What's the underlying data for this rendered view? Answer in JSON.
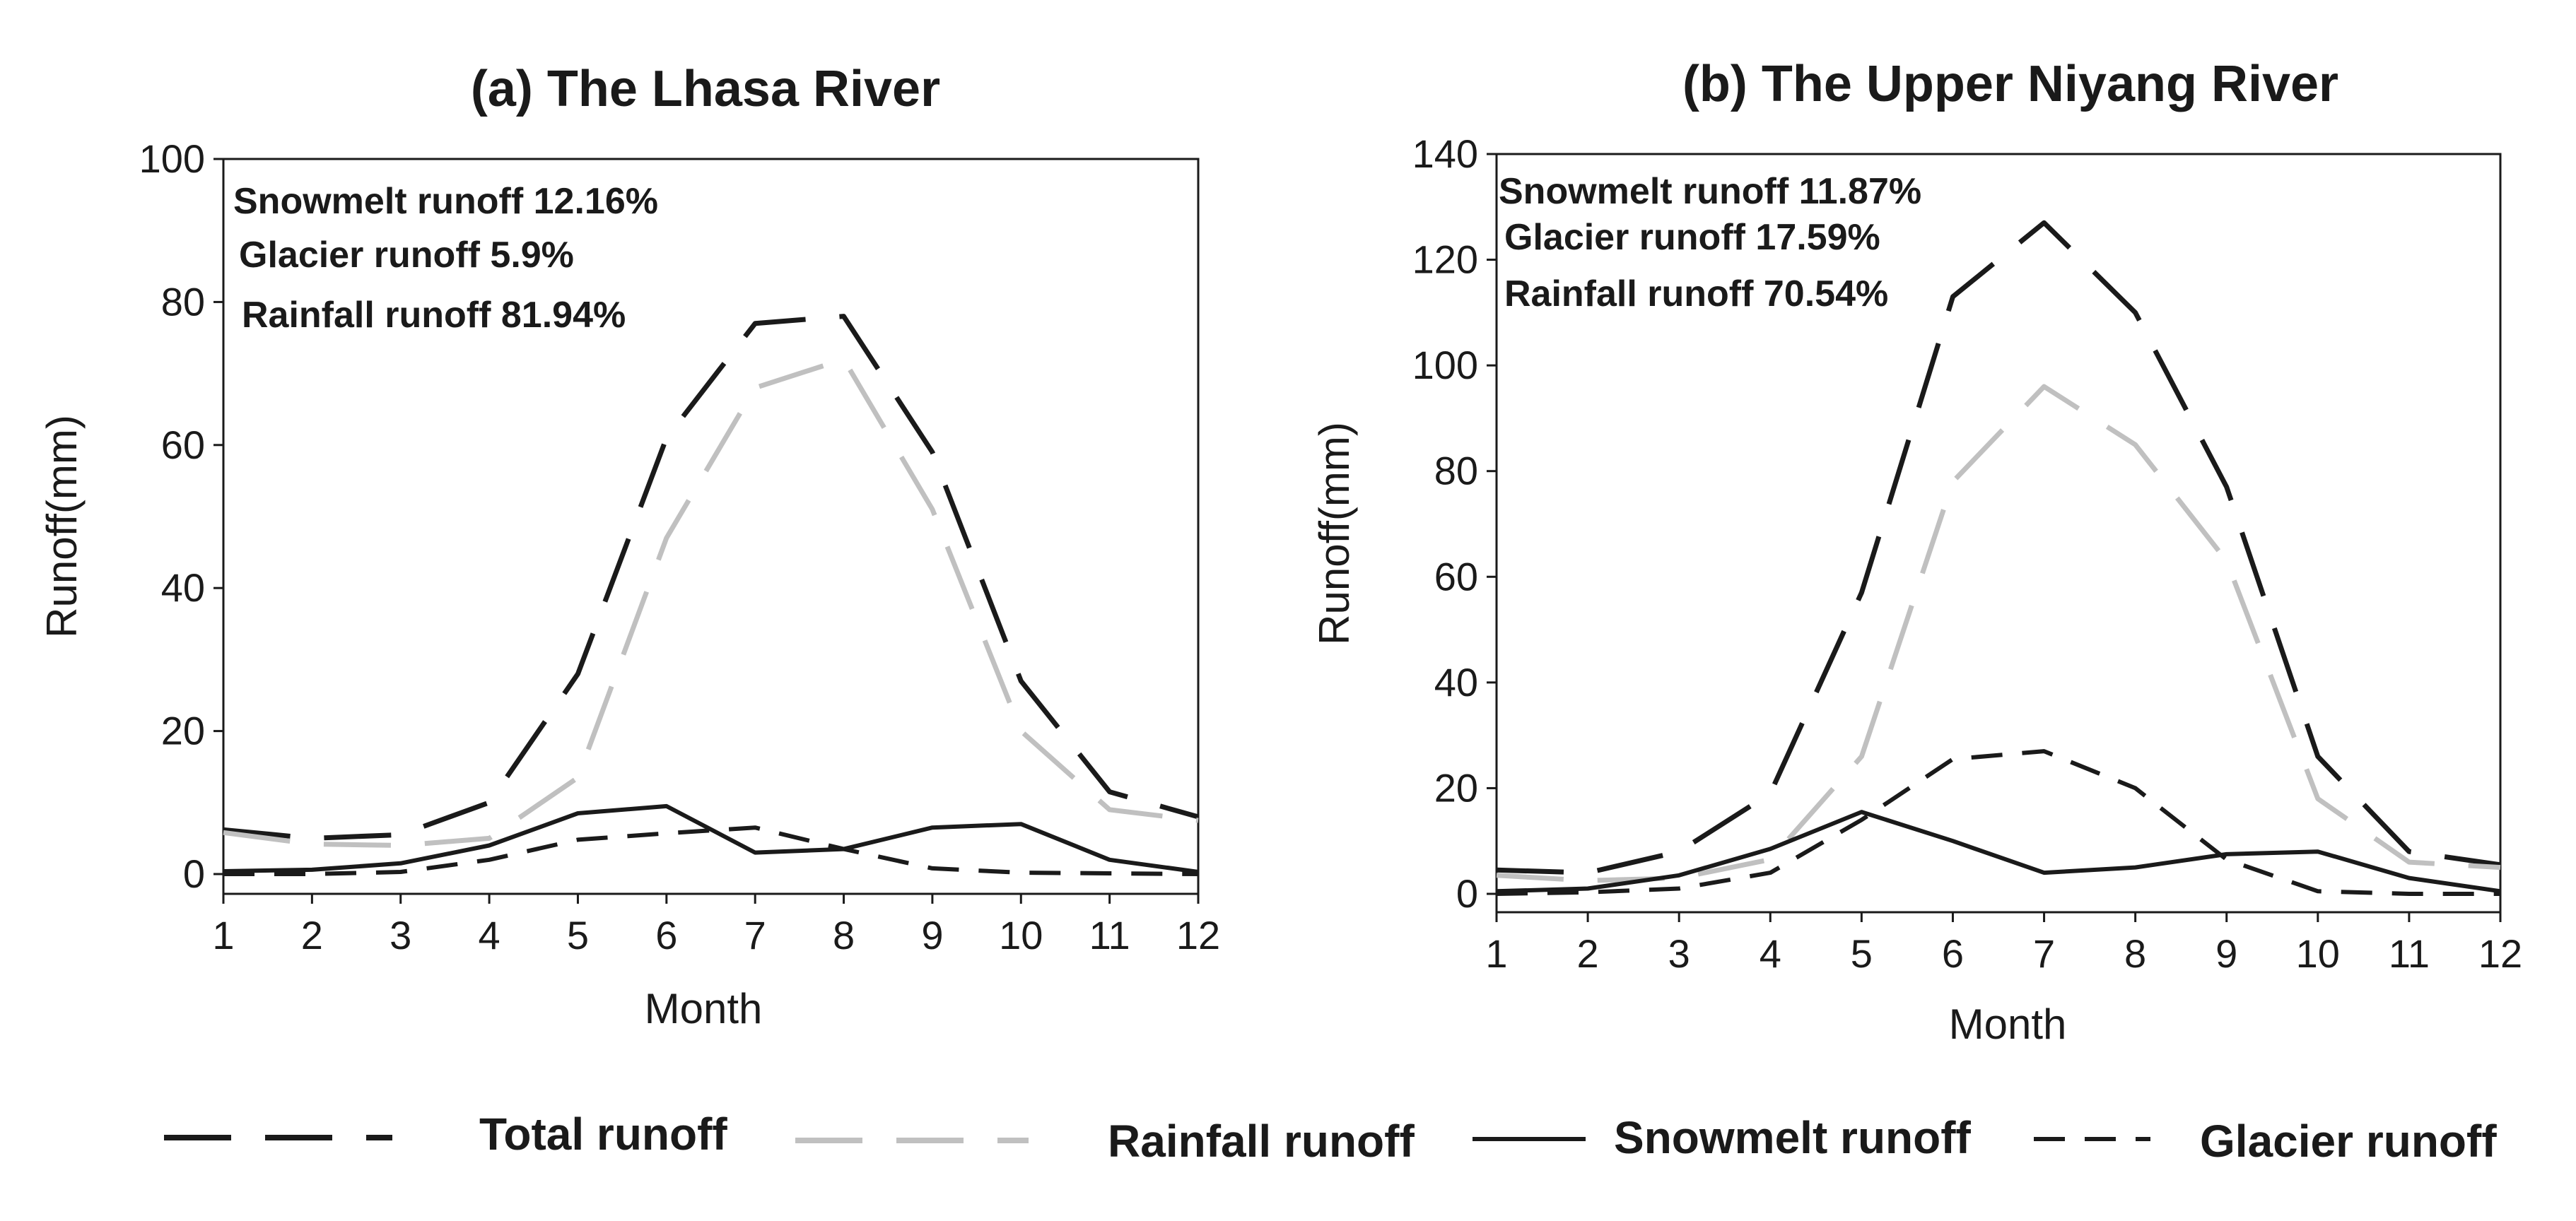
{
  "chart_data": [
    {
      "type": "line",
      "title": "(a) The Lhasa River",
      "xlabel": "Month",
      "ylabel": "Runoff(mm)",
      "xlim": [
        1,
        12
      ],
      "ylim": [
        0,
        100
      ],
      "x_ticks": [
        "1",
        "2",
        "3",
        "4",
        "5",
        "6",
        "7",
        "8",
        "9",
        "10",
        "11",
        "12"
      ],
      "y_ticks": [
        "0",
        "20",
        "40",
        "60",
        "80",
        "100"
      ],
      "grid": false,
      "annotations": [
        "Snowmelt runoff 12.16%",
        "Glacier runoff 5.9%",
        "Rainfall runoff 81.94%"
      ],
      "x": [
        1,
        2,
        3,
        4,
        5,
        6,
        7,
        8,
        9,
        10,
        11,
        12
      ],
      "series": [
        {
          "name": "Total runoff",
          "values": [
            6.2,
            5.0,
            5.5,
            10,
            28,
            61,
            77,
            78,
            59,
            27,
            11.5,
            8
          ]
        },
        {
          "name": "Rainfall runoff",
          "values": [
            5.8,
            4.2,
            4.0,
            5.0,
            13.5,
            47,
            68,
            72,
            51,
            20,
            9,
            7.5
          ]
        },
        {
          "name": "Snowmelt runoff",
          "values": [
            0.4,
            0.6,
            1.5,
            4,
            8.5,
            9.5,
            3,
            3.5,
            6.5,
            7,
            2,
            0.3
          ]
        },
        {
          "name": "Glacier runoff",
          "values": [
            0,
            0,
            0.3,
            2,
            4.8,
            5.7,
            6.5,
            3.5,
            0.8,
            0.2,
            0.1,
            0
          ]
        }
      ]
    },
    {
      "type": "line",
      "title": "(b) The Upper Niyang River",
      "xlabel": "Month",
      "ylabel": "Runoff(mm)",
      "xlim": [
        1,
        12
      ],
      "ylim": [
        0,
        140
      ],
      "x_ticks": [
        "1",
        "2",
        "3",
        "4",
        "5",
        "6",
        "7",
        "8",
        "9",
        "10",
        "11",
        "12"
      ],
      "y_ticks": [
        "0",
        "20",
        "40",
        "60",
        "80",
        "100",
        "120",
        "140"
      ],
      "grid": false,
      "annotations": [
        "Snowmelt runoff 11.87%",
        "Glacier runoff 17.59%",
        "Rainfall runoff 70.54%"
      ],
      "x": [
        1,
        2,
        3,
        4,
        5,
        6,
        7,
        8,
        9,
        10,
        11,
        12
      ],
      "series": [
        {
          "name": "Total runoff",
          "values": [
            4.5,
            4.0,
            8,
            19,
            57,
            113,
            127,
            110,
            77,
            26,
            8,
            5.5
          ]
        },
        {
          "name": "Rainfall runoff",
          "values": [
            3.5,
            2.5,
            3,
            6.5,
            26,
            78,
            96,
            85,
            63,
            18,
            6,
            5
          ]
        },
        {
          "name": "Snowmelt runoff",
          "values": [
            0.5,
            1,
            3.5,
            8.5,
            15.5,
            10,
            4,
            5,
            7.5,
            8,
            3,
            0.5
          ]
        },
        {
          "name": "Glacier runoff",
          "values": [
            0,
            0.3,
            1,
            4,
            14,
            25.5,
            27,
            20,
            6.5,
            0.5,
            0,
            0
          ]
        }
      ]
    }
  ],
  "legend": [
    {
      "label": "Total runoff",
      "color": "#1a1a1a",
      "style": "long-dash"
    },
    {
      "label": "Rainfall runoff",
      "color": "#c0c0c0",
      "style": "long-dash"
    },
    {
      "label": "Snowmelt runoff",
      "color": "#1a1a1a",
      "style": "solid"
    },
    {
      "label": "Glacier runoff",
      "color": "#1a1a1a",
      "style": "short-dash"
    }
  ]
}
